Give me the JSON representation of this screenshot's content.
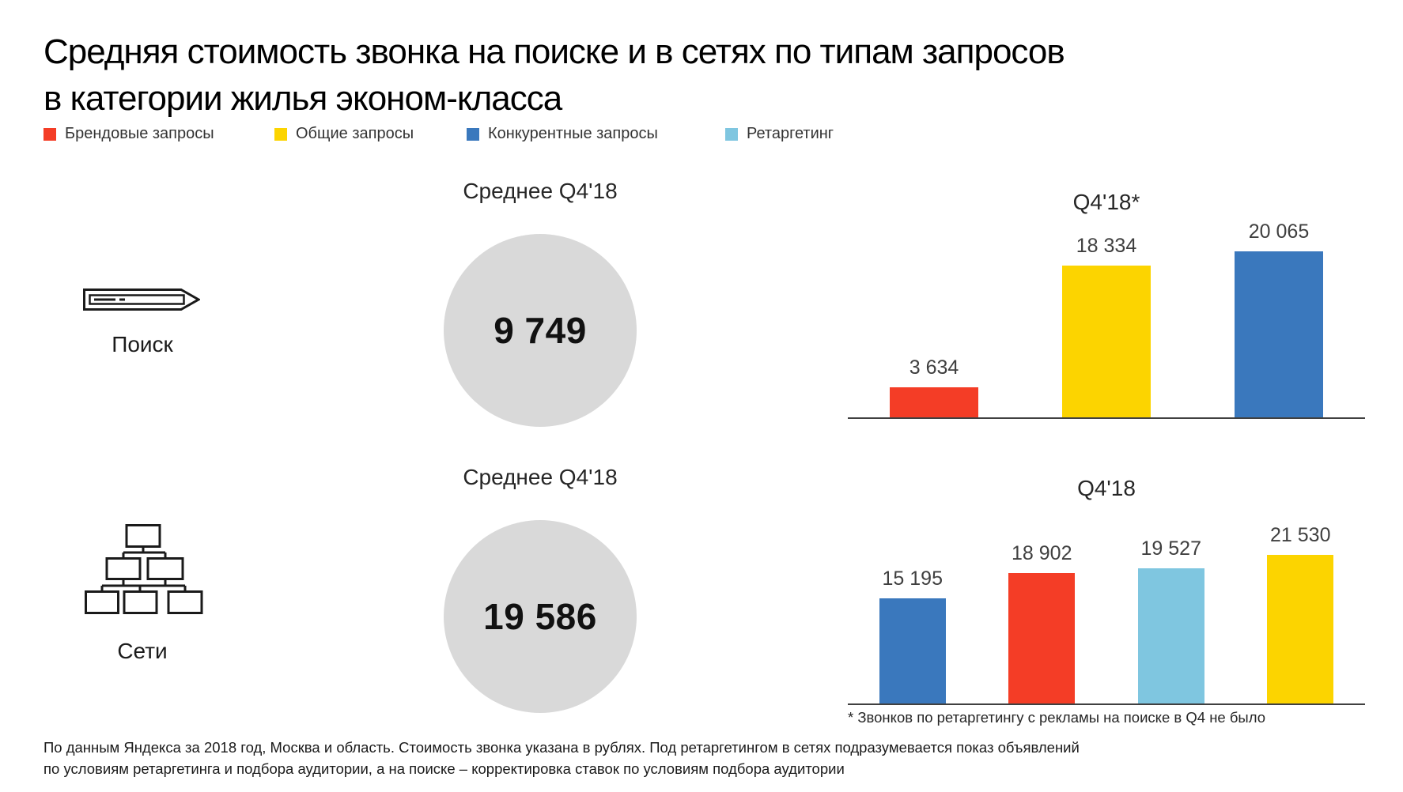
{
  "title": "Средняя стоимость звонка на поиске и в сетях по типам запросов в категории жилья эконом-класса",
  "colors": {
    "brand_red": "#f43d26",
    "general_yellow": "#fcd400",
    "competitor_blue": "#3a78bd",
    "retargeting_lightblue": "#7fc6e0",
    "circle_gray": "#d9d9d9"
  },
  "legend": [
    {
      "label": "Брендовые запросы",
      "color": "#f43d26"
    },
    {
      "label": "Общие запросы",
      "color": "#fcd400"
    },
    {
      "label": "Конкурентные запросы",
      "color": "#3a78bd"
    },
    {
      "label": "Ретаргетинг",
      "color": "#7fc6e0"
    }
  ],
  "rows": [
    {
      "label": "Поиск",
      "icon": "search-bar-icon",
      "average_header": "Среднее Q4'18",
      "average_value": "9 749",
      "chart_title": "Q4'18*"
    },
    {
      "label": "Сети",
      "icon": "network-icon",
      "average_header": "Среднее Q4'18",
      "average_value": "19 586",
      "chart_title": "Q4'18"
    }
  ],
  "chart_data": [
    {
      "type": "bar",
      "group": "Поиск",
      "title": "Q4'18*",
      "categories": [
        "Брендовые запросы",
        "Общие запросы",
        "Конкурентные запросы"
      ],
      "values": [
        3634,
        18334,
        20065
      ],
      "data_labels": [
        "3 634",
        "18 334",
        "20 065"
      ],
      "colors": [
        "#f43d26",
        "#fcd400",
        "#3a78bd"
      ],
      "average": 9749,
      "average_label": "9 749",
      "grid": false,
      "value_labels": true,
      "legend_position": "top-left-shared"
    },
    {
      "type": "bar",
      "group": "Сети",
      "title": "Q4'18",
      "categories": [
        "Конкурентные запросы",
        "Брендовые запросы",
        "Ретаргетинг",
        "Общие запросы"
      ],
      "values": [
        15195,
        18902,
        19527,
        21530
      ],
      "data_labels": [
        "15 195",
        "18 902",
        "19 527",
        "21 530"
      ],
      "colors": [
        "#3a78bd",
        "#f43d26",
        "#7fc6e0",
        "#fcd400"
      ],
      "average": 19586,
      "average_label": "19 586",
      "grid": false,
      "value_labels": true,
      "legend_position": "top-left-shared"
    }
  ],
  "footnote": "* Звонков по ретаргетингу с рекламы на поиске в Q4 не было",
  "footer": "По данным Яндекса за 2018 год, Москва и область. Стоимость звонка указана в рублях. Под ретаргетингом в сетях подразумевается показ объявлений по условиям ретаргетинга и подбора аудитории, а на поиске – корректировка ставок по условиям подбора аудитории"
}
